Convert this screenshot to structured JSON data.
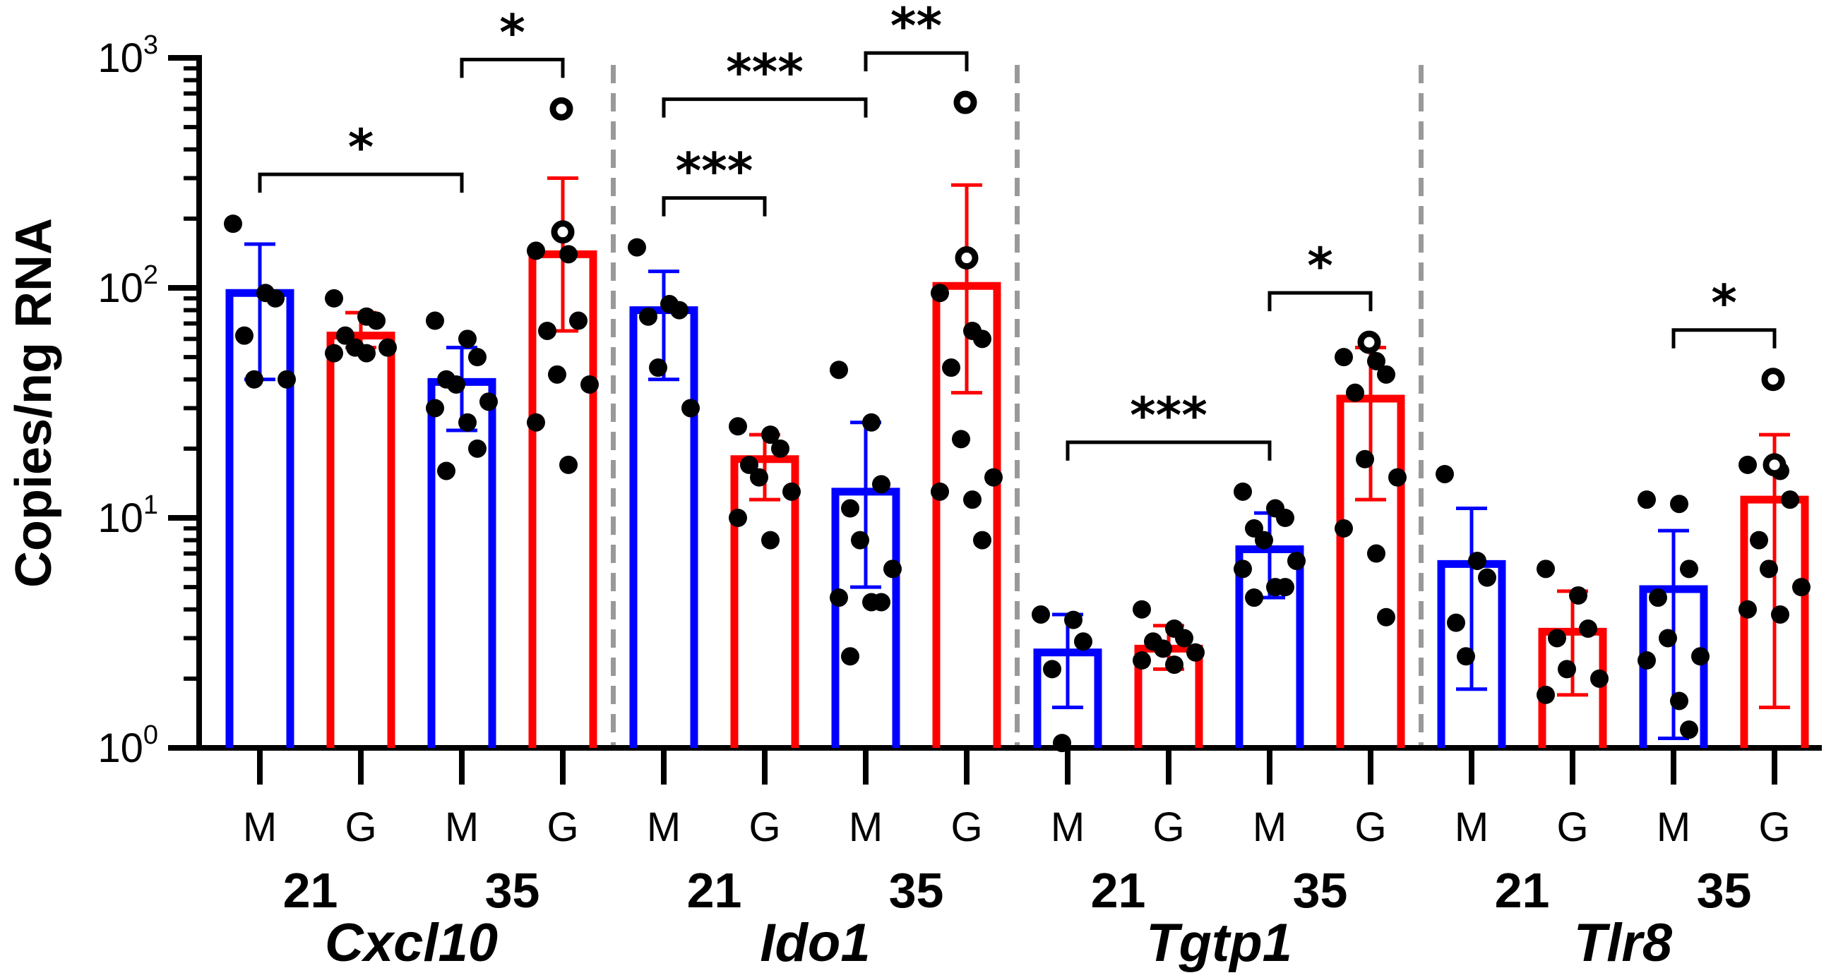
{
  "chart_data": {
    "type": "bar",
    "scale": "log",
    "ylabel": "Copies/ng RNA",
    "ylim": [
      1,
      1000
    ],
    "yticks": [
      {
        "value": 1,
        "base": "10",
        "exp": "0"
      },
      {
        "value": 10,
        "base": "10",
        "exp": "1"
      },
      {
        "value": 100,
        "base": "10",
        "exp": "2"
      },
      {
        "value": 1000,
        "base": "10",
        "exp": "3"
      }
    ],
    "colors": {
      "M": "#0000ff",
      "G": "#ff0000"
    },
    "genes": [
      {
        "name": "Cxcl10",
        "days": [
          "21",
          "35"
        ],
        "bars": [
          {
            "group": "M",
            "day": "21",
            "mean": 95,
            "err_low": 40,
            "err_high": 155,
            "points": [
              190,
              95,
              90,
              62,
              40,
              40
            ],
            "open_points": []
          },
          {
            "group": "G",
            "day": "21",
            "mean": 62,
            "err_low": 55,
            "err_high": 78,
            "points": [
              90,
              75,
              72,
              62,
              55,
              55,
              52,
              52
            ],
            "open_points": []
          },
          {
            "group": "M",
            "day": "35",
            "mean": 39,
            "err_low": 24,
            "err_high": 55,
            "points": [
              72,
              60,
              50,
              40,
              38,
              32,
              30,
              26,
              20,
              16
            ],
            "open_points": []
          },
          {
            "group": "G",
            "day": "35",
            "mean": 140,
            "err_low": 65,
            "err_high": 300,
            "points": [
              145,
              140,
              72,
              65,
              42,
              38,
              26,
              17
            ],
            "open_points": [
              600,
              175
            ]
          }
        ],
        "comparisons": [
          {
            "from": 0,
            "to": 2,
            "label": "*",
            "level": 0
          },
          {
            "from": 2,
            "to": 3,
            "label": "*",
            "level": 0
          }
        ]
      },
      {
        "name": "Ido1",
        "days": [
          "21",
          "35"
        ],
        "bars": [
          {
            "group": "M",
            "day": "21",
            "mean": 80,
            "err_low": 40,
            "err_high": 118,
            "points": [
              150,
              85,
              80,
              75,
              45,
              30
            ],
            "open_points": []
          },
          {
            "group": "G",
            "day": "21",
            "mean": 18,
            "err_low": 12,
            "err_high": 23,
            "points": [
              25,
              23,
              20,
              17,
              15,
              13,
              10,
              8
            ],
            "open_points": []
          },
          {
            "group": "M",
            "day": "35",
            "mean": 13,
            "err_low": 5,
            "err_high": 26,
            "points": [
              44,
              26,
              14,
              11,
              8,
              6,
              4.5,
              4.3,
              4.3,
              2.5
            ],
            "open_points": []
          },
          {
            "group": "G",
            "day": "35",
            "mean": 102,
            "err_low": 35,
            "err_high": 280,
            "points": [
              95,
              65,
              60,
              45,
              22,
              15,
              13,
              12,
              8
            ],
            "open_points": [
              640,
              135
            ]
          }
        ],
        "comparisons": [
          {
            "from": 0,
            "to": 1,
            "label": "***",
            "level": 0
          },
          {
            "from": 0,
            "to": 2,
            "label": "***",
            "level": 1
          },
          {
            "from": 2,
            "to": 3,
            "label": "**",
            "level": 0
          }
        ]
      },
      {
        "name": "Tgtp1",
        "days": [
          "21",
          "35"
        ],
        "bars": [
          {
            "group": "M",
            "day": "21",
            "mean": 2.6,
            "err_low": 1.5,
            "err_high": 3.8,
            "points": [
              3.8,
              3.6,
              2.9,
              2.2,
              1.05
            ],
            "open_points": []
          },
          {
            "group": "G",
            "day": "21",
            "mean": 2.7,
            "err_low": 2.2,
            "err_high": 3.4,
            "points": [
              4.0,
              3.3,
              3.0,
              2.9,
              2.7,
              2.6,
              2.4,
              2.3
            ],
            "open_points": []
          },
          {
            "group": "M",
            "day": "35",
            "mean": 7.3,
            "err_low": 4.5,
            "err_high": 10.5,
            "points": [
              13,
              11,
              10,
              9,
              8,
              6.5,
              6,
              5,
              5,
              4.5
            ],
            "open_points": []
          },
          {
            "group": "G",
            "day": "35",
            "mean": 33,
            "err_low": 12,
            "err_high": 55,
            "points": [
              50,
              48,
              42,
              35,
              18,
              15,
              9,
              7,
              3.7
            ],
            "open_points": [
              58
            ]
          }
        ],
        "comparisons": [
          {
            "from": 0,
            "to": 2,
            "label": "***",
            "level": 0
          },
          {
            "from": 2,
            "to": 3,
            "label": "*",
            "level": 0
          }
        ]
      },
      {
        "name": "Tlr8",
        "days": [
          "21",
          "35"
        ],
        "bars": [
          {
            "group": "M",
            "day": "21",
            "mean": 6.3,
            "err_low": 1.8,
            "err_high": 11,
            "points": [
              15.5,
              6.5,
              5.5,
              3.5,
              2.5
            ],
            "open_points": []
          },
          {
            "group": "G",
            "day": "21",
            "mean": 3.2,
            "err_low": 1.7,
            "err_high": 4.8,
            "points": [
              6.0,
              4.6,
              3.3,
              3.0,
              2.2,
              2.0,
              1.7
            ],
            "open_points": []
          },
          {
            "group": "M",
            "day": "35",
            "mean": 4.9,
            "err_low": 1.1,
            "err_high": 8.8,
            "points": [
              12,
              11.5,
              6,
              4.5,
              3,
              2.5,
              2.4,
              1.6,
              1.2
            ],
            "open_points": []
          },
          {
            "group": "G",
            "day": "35",
            "mean": 12,
            "err_low": 1.5,
            "err_high": 23,
            "points": [
              17,
              16,
              12,
              8,
              6,
              5,
              4,
              3.8
            ],
            "open_points": [
              40,
              17
            ]
          }
        ],
        "comparisons": [
          {
            "from": 2,
            "to": 3,
            "label": "*",
            "level": 0
          }
        ]
      }
    ]
  }
}
